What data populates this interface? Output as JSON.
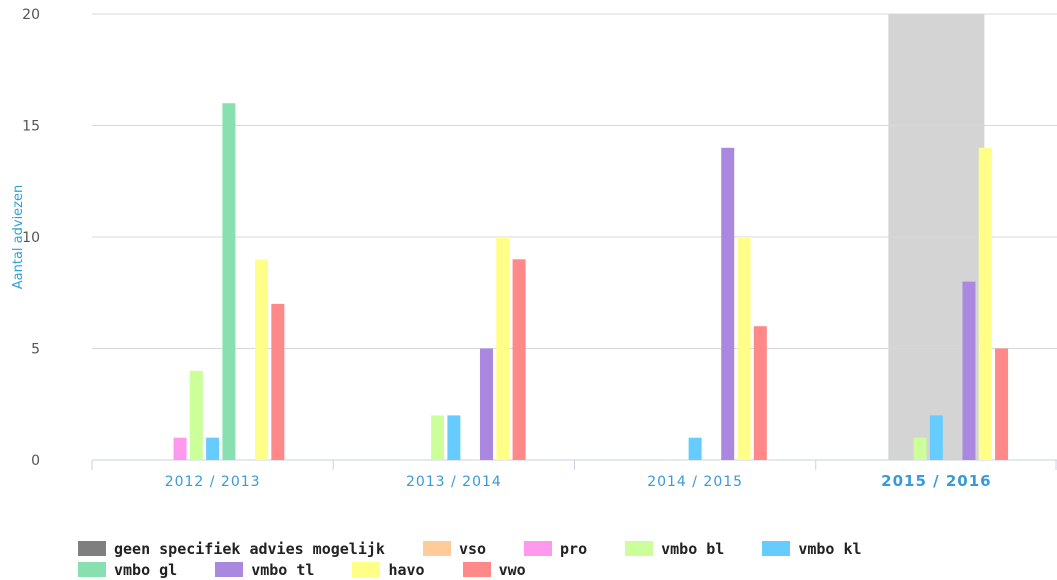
{
  "chart_data": {
    "type": "bar",
    "ylabel": "Aantal adviezen",
    "xlabel": "",
    "ylim": [
      0,
      20
    ],
    "yticks": [
      0,
      5,
      10,
      15,
      20
    ],
    "categories": [
      "2012 / 2013",
      "2013 / 2014",
      "2014 / 2015",
      "2015 / 2016"
    ],
    "highlighted_category": "2015 / 2016",
    "grid": true,
    "legend_position": "bottom",
    "series": [
      {
        "name": "geen specifiek advies mogelijk",
        "color": "#7f7f7f",
        "values": [
          0,
          0,
          0,
          0
        ]
      },
      {
        "name": "vso",
        "color": "#ffcc99",
        "values": [
          0,
          0,
          0,
          0
        ]
      },
      {
        "name": "pro",
        "color": "#ff99ee",
        "values": [
          1,
          0,
          0,
          0
        ]
      },
      {
        "name": "vmbo bl",
        "color": "#ccff99",
        "values": [
          4,
          2,
          0,
          1
        ]
      },
      {
        "name": "vmbo kl",
        "color": "#66ccff",
        "values": [
          1,
          2,
          1,
          2
        ]
      },
      {
        "name": "vmbo gl",
        "color": "#88e0b0",
        "values": [
          16,
          0,
          0,
          0
        ]
      },
      {
        "name": "vmbo tl",
        "color": "#aa88e0",
        "values": [
          0,
          5,
          14,
          8
        ]
      },
      {
        "name": "havo",
        "color": "#ffff88",
        "values": [
          9,
          10,
          10,
          14
        ]
      },
      {
        "name": "vwo",
        "color": "#ff8888",
        "values": [
          7,
          9,
          6,
          5
        ]
      }
    ]
  },
  "legend_rows": [
    [
      0,
      1,
      2,
      3,
      4
    ],
    [
      5,
      6,
      7,
      8
    ]
  ]
}
